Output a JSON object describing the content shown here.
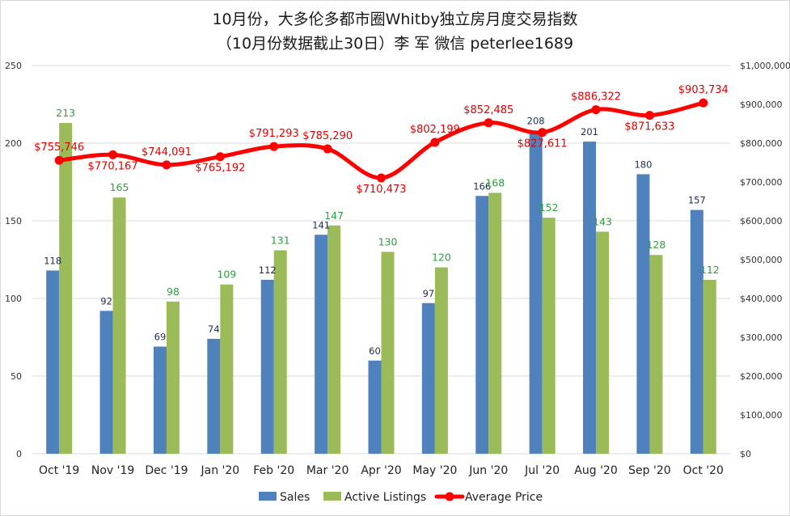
{
  "chart_data": {
    "type": "bar",
    "title": "10月份，大多伦多都市圈Whitby独立房月度交易指数",
    "subtitle": "（10月份数据截止30日）李 军  微信  peterlee1689",
    "categories": [
      "Oct '19",
      "Nov '19",
      "Dec '19",
      "Jan '20",
      "Feb '20",
      "Mar '20",
      "Apr '20",
      "May '20",
      "Jun '20",
      "Jul '20",
      "Aug '20",
      "Sep '20",
      "Oct '20"
    ],
    "series": [
      {
        "name": "Sales",
        "type": "bar",
        "axis": "left",
        "color": "#4f81bd",
        "values": [
          118,
          92,
          69,
          74,
          112,
          141,
          60,
          97,
          166,
          208,
          201,
          180,
          157
        ]
      },
      {
        "name": "Active Listings",
        "type": "bar",
        "axis": "left",
        "color": "#9bbb59",
        "values": [
          213,
          165,
          98,
          109,
          131,
          147,
          130,
          120,
          168,
          152,
          143,
          128,
          112
        ]
      },
      {
        "name": "Average Price",
        "type": "line",
        "axis": "right",
        "color": "#ff0000",
        "values": [
          755746,
          770167,
          744091,
          765192,
          791293,
          785290,
          710473,
          802199,
          852485,
          827611,
          886322,
          871633,
          903734
        ],
        "labels": [
          "$755,746",
          "$770,167",
          "$744,091",
          "$765,192",
          "$791,293",
          "$785,290",
          "$710,473",
          "$802,199",
          "$852,485",
          "$827,611",
          "$886,322",
          "$871,633",
          "$903,734"
        ]
      }
    ],
    "y_left": {
      "lim": [
        0,
        250
      ],
      "ticks": [
        "0",
        "50",
        "100",
        "150",
        "200",
        "250"
      ]
    },
    "y_right": {
      "lim": [
        0,
        1000000
      ],
      "ticks": [
        "$0",
        "$100,000",
        "$200,000",
        "$300,000",
        "$400,000",
        "$500,000",
        "$600,000",
        "$700,000",
        "$800,000",
        "$900,000",
        "$1,000,000"
      ]
    },
    "grid": true,
    "legend_position": "bottom"
  }
}
